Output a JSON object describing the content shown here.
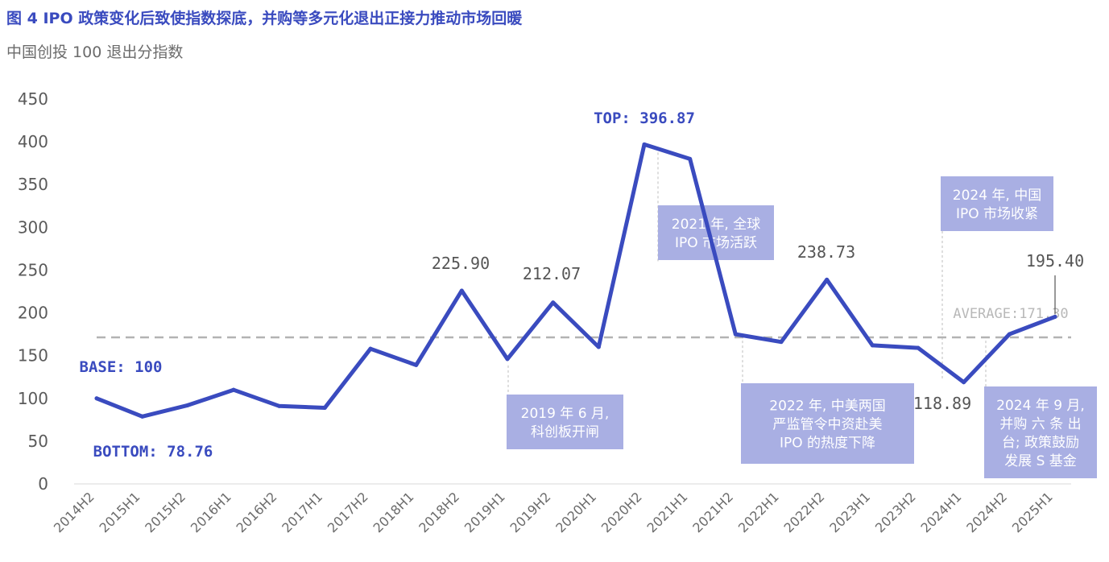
{
  "title": "图 4 IPO 政策变化后致使指数探底，并购等多元化退出正接力推动市场回暖",
  "subtitle": "中国创投 100 退出分指数",
  "chart_data": {
    "type": "line",
    "categories": [
      "2014H2",
      "2015H1",
      "2015H2",
      "2016H1",
      "2016H2",
      "2017H1",
      "2017H2",
      "2018H1",
      "2018H2",
      "2019H1",
      "2019H2",
      "2020H1",
      "2020H2",
      "2021H1",
      "2021H2",
      "2022H1",
      "2022H2",
      "2023H1",
      "2023H2",
      "2024H1",
      "2024H2",
      "2025H1"
    ],
    "values": [
      100,
      78.76,
      92,
      110,
      91,
      89,
      158,
      139,
      225.9,
      146,
      212.07,
      160,
      396.87,
      380,
      175,
      166,
      238.73,
      162,
      159,
      118.89,
      175,
      195.4
    ],
    "ylim": [
      0,
      450
    ],
    "yticks": [
      0,
      50,
      100,
      150,
      200,
      250,
      300,
      350,
      400,
      450
    ],
    "average": 171.3,
    "series_color": "#3a4bbf",
    "grid": false,
    "value_labels": [
      {
        "index": 0,
        "text": "BASE: 100",
        "style": "accent"
      },
      {
        "index": 1,
        "text": "BOTTOM: 78.76",
        "style": "accent"
      },
      {
        "index": 8,
        "text": "225.90",
        "style": "plain"
      },
      {
        "index": 10,
        "text": "212.07",
        "style": "plain"
      },
      {
        "index": 12,
        "text": "TOP: 396.87",
        "style": "accent"
      },
      {
        "index": 16,
        "text": "238.73",
        "style": "plain"
      },
      {
        "index": 19,
        "text": "118.89",
        "style": "plain"
      },
      {
        "index": 21,
        "text": "195.40",
        "style": "plain"
      }
    ],
    "average_label": "AVERAGE:171.30",
    "annotations": [
      {
        "index": 9,
        "lines": [
          "2019 年 6 月,",
          "科创板开闸"
        ]
      },
      {
        "index": 12,
        "lines": [
          "2021 年, 全球",
          "IPO 市场活跃"
        ]
      },
      {
        "index": 14,
        "lines": [
          "2022 年, 中美两国",
          "严监管令中资赴美",
          "IPO 的热度下降"
        ]
      },
      {
        "index": 19,
        "lines": [
          "2024 年, 中国",
          "IPO 市场收紧"
        ]
      },
      {
        "index": 20,
        "lines": [
          "2024 年 9 月,",
          "并购 六 条 出",
          "台; 政策鼓励",
          "发展 S 基金"
        ]
      }
    ]
  }
}
